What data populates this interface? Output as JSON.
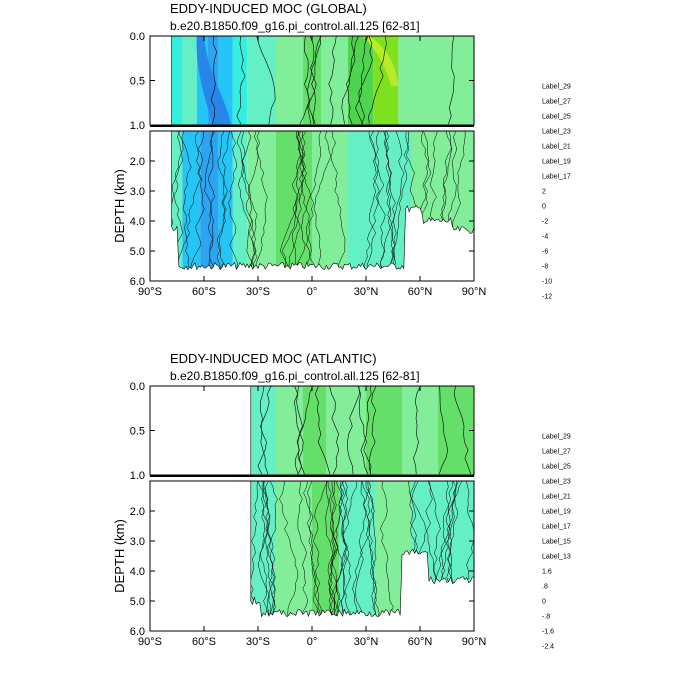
{
  "chart_data": [
    {
      "type": "heatmap",
      "title": "EDDY-INDUCED MOC (GLOBAL)",
      "subtitle": "b.e20.B1850.f09_g16.pi_control.all.125 [62-81]",
      "ylabel": "DEPTH (km)",
      "xlabel": "",
      "upper_panel_yticks": [
        "0.0",
        "0.5",
        "1.0"
      ],
      "lower_panel_yticks": [
        "2.0",
        "3.0",
        "4.0",
        "5.0",
        "6.0"
      ],
      "xticks": [
        "90°S",
        "60°S",
        "30°S",
        "0°",
        "30°N",
        "60°N",
        "90°N"
      ],
      "xlim": [
        -90,
        90
      ],
      "upper_depth_range_km": [
        0,
        1
      ],
      "lower_depth_range_km": [
        1,
        6
      ],
      "ocean_extent_lat": [
        -78,
        90
      ],
      "colorbar_labels": [
        "Label_29",
        "Label_27",
        "Label_25",
        "Label_23",
        "Label_21",
        "Label_19",
        "Label_17",
        "2",
        "0",
        "-2",
        "-4",
        "-6",
        "-8",
        "-10",
        "-12"
      ],
      "colorbar_colors": [
        "#b50000",
        "#c80000",
        "#dc0a0a",
        "#ec2c16",
        "#f2501f",
        "#f56e2d",
        "#f58a3a",
        "#f5a040",
        "#f7b848",
        "#f7cb50",
        "#f6dc4c",
        "#f4ef3a",
        "#e8f53a",
        "#b8ec28",
        "#7fe020",
        "#3ec832",
        "#4ed44e",
        "#64e06a",
        "#82ee9a",
        "#64f0c4",
        "#34eede",
        "#1ee6f4",
        "#24c4f4",
        "#2ca4f0",
        "#2886e8",
        "#2366dc",
        "#1f3ee6",
        "#0a12e6",
        "#5a1ec8",
        "#8a1ed2",
        "#b41ee6",
        "#dc1ef0",
        "#f03cf0",
        "#c8c8c8",
        "#7a7a7a",
        "#ffffff"
      ]
    },
    {
      "type": "heatmap",
      "title": "EDDY-INDUCED MOC (ATLANTIC)",
      "subtitle": "b.e20.B1850.f09_g16.pi_control.all.125 [62-81]",
      "ylabel": "DEPTH (km)",
      "xlabel": "",
      "upper_panel_yticks": [
        "0.0",
        "0.5",
        "1.0"
      ],
      "lower_panel_yticks": [
        "2.0",
        "3.0",
        "4.0",
        "5.0",
        "6.0"
      ],
      "xticks": [
        "90°S",
        "60°S",
        "30°S",
        "0°",
        "30°N",
        "60°N",
        "90°N"
      ],
      "xlim": [
        -90,
        90
      ],
      "upper_depth_range_km": [
        0,
        1
      ],
      "lower_depth_range_km": [
        1,
        6
      ],
      "ocean_extent_lat": [
        -34,
        90
      ],
      "colorbar_labels": [
        "Label_29",
        "Label_27",
        "Label_25",
        "Label_23",
        "Label_21",
        "Label_19",
        "Label_17",
        "Label_15",
        "Label_13",
        "1.6",
        ".8",
        "0",
        "-.8",
        "-1.6",
        "-2.4"
      ],
      "colorbar_colors": [
        "#b50000",
        "#c80000",
        "#dc0a0a",
        "#ec2c16",
        "#f2501f",
        "#f56e2d",
        "#f58a3a",
        "#f5a040",
        "#f7b848",
        "#f7cb50",
        "#f6dc4c",
        "#f4ef3a",
        "#e8f53a",
        "#b8ec28",
        "#7fe020",
        "#3ec832",
        "#4ed44e",
        "#64e06a",
        "#82ee9a",
        "#64f0c4",
        "#34eede",
        "#1ee6f4",
        "#24c4f4",
        "#2ca4f0",
        "#2886e8",
        "#2366dc",
        "#1f3ee6",
        "#0a12e6",
        "#5a1ec8",
        "#8a1ed2",
        "#b41ee6",
        "#dc1ef0",
        "#f03cf0",
        "#c8c8c8",
        "#7a7a7a",
        "#ffffff"
      ]
    }
  ]
}
